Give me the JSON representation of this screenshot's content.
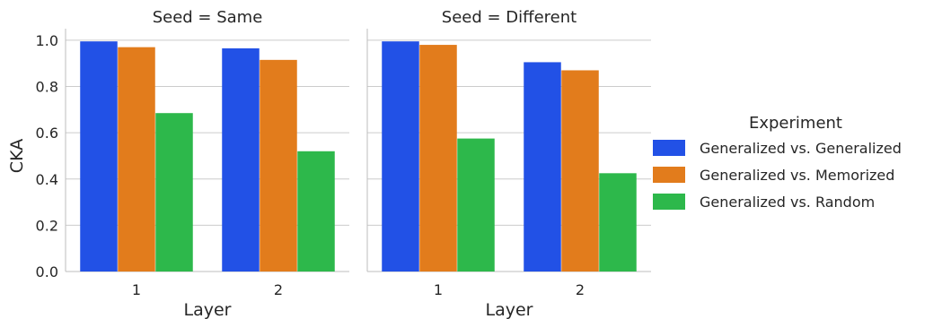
{
  "chart_data": {
    "type": "bar",
    "ylabel": "CKA",
    "xlabel": "Layer",
    "ylim": [
      0,
      1.05
    ],
    "yticks": [
      "0.0",
      "0.2",
      "0.4",
      "0.6",
      "0.8",
      "1.0"
    ],
    "grid": true,
    "legend": {
      "title": "Experiment",
      "placement": "right"
    },
    "categories": [
      "1",
      "2"
    ],
    "series_colors": [
      "#2251e6",
      "#e27c1c",
      "#2db84b"
    ],
    "facets": [
      {
        "title": "Seed = Same",
        "series": [
          {
            "name": "Generalized vs. Generalized",
            "values": [
              0.995,
              0.965
            ]
          },
          {
            "name": "Generalized vs. Memorized",
            "values": [
              0.97,
              0.915
            ]
          },
          {
            "name": "Generalized vs. Random",
            "values": [
              0.685,
              0.52
            ]
          }
        ]
      },
      {
        "title": "Seed = Different",
        "series": [
          {
            "name": "Generalized vs. Generalized",
            "values": [
              0.995,
              0.905
            ]
          },
          {
            "name": "Generalized vs. Memorized",
            "values": [
              0.98,
              0.87
            ]
          },
          {
            "name": "Generalized vs. Random",
            "values": [
              0.575,
              0.425
            ]
          }
        ]
      }
    ]
  }
}
